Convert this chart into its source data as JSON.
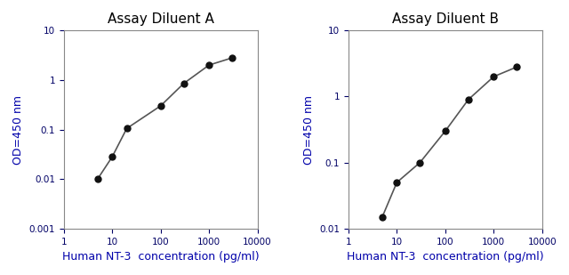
{
  "chart_A": {
    "title": "Assay Diluent A",
    "x": [
      5,
      10,
      20,
      100,
      300,
      1000,
      3000
    ],
    "y": [
      0.01,
      0.028,
      0.105,
      0.3,
      0.85,
      2.0,
      2.8
    ],
    "xlabel": "Human NT-3  concentration (pg/ml)",
    "ylabel": "OD=450 nm",
    "xlim": [
      1,
      10000
    ],
    "ylim": [
      0.001,
      10
    ],
    "yticks": [
      0.001,
      0.01,
      0.1,
      1,
      10
    ],
    "yticklabels": [
      "0.001",
      "0.01",
      "0.1",
      "1",
      "10"
    ]
  },
  "chart_B": {
    "title": "Assay Diluent B",
    "x": [
      5,
      10,
      30,
      100,
      300,
      1000,
      3000
    ],
    "y": [
      0.015,
      0.05,
      0.1,
      0.3,
      0.9,
      2.0,
      2.8
    ],
    "xlabel": "Human NT-3  concentration (pg/ml)",
    "ylabel": "OD=450 nm",
    "xlim": [
      1,
      10000
    ],
    "ylim": [
      0.01,
      10
    ],
    "yticks": [
      0.01,
      0.1,
      1,
      10
    ],
    "yticklabels": [
      "0.01",
      "0.1",
      "1",
      "10"
    ]
  },
  "line_color": "#555555",
  "marker_color": "#111111",
  "title_color": "#000000",
  "label_color": "#0000aa",
  "tick_color": "#000066",
  "background_color": "#ffffff",
  "marker_size": 5,
  "line_width": 1.2,
  "xticks": [
    1,
    10,
    100,
    1000,
    10000
  ],
  "xticklabels": [
    "1",
    "10",
    "100",
    "1000",
    "10000"
  ]
}
